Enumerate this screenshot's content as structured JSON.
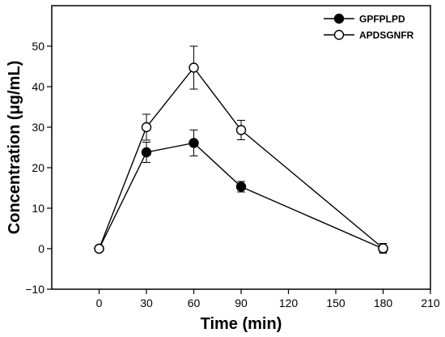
{
  "chart_data": {
    "type": "line",
    "xlabel": "Time (min)",
    "ylabel": "Concentration (μg/mL)",
    "xlim": [
      -30,
      210
    ],
    "ylim": [
      -10,
      60
    ],
    "xticks": [
      0,
      30,
      60,
      90,
      120,
      150,
      180,
      210
    ],
    "yticks": [
      -10,
      0,
      10,
      20,
      30,
      40,
      50
    ],
    "grid": false,
    "legend_position": "top-right",
    "series": [
      {
        "name": "GPFPLPD",
        "marker": "filled-circle",
        "color": "#000000",
        "x": [
          0,
          30,
          60,
          90,
          180
        ],
        "y": [
          0,
          23.8,
          26.1,
          15.3,
          0
        ],
        "err": [
          0,
          2.5,
          3.2,
          1.3,
          0
        ]
      },
      {
        "name": "APDSGNFR",
        "marker": "open-circle",
        "color": "#000000",
        "x": [
          0,
          30,
          60,
          90,
          180
        ],
        "y": [
          0,
          30.0,
          44.7,
          29.3,
          0.1
        ],
        "err": [
          0,
          3.2,
          5.3,
          2.4,
          1.2
        ]
      }
    ]
  }
}
